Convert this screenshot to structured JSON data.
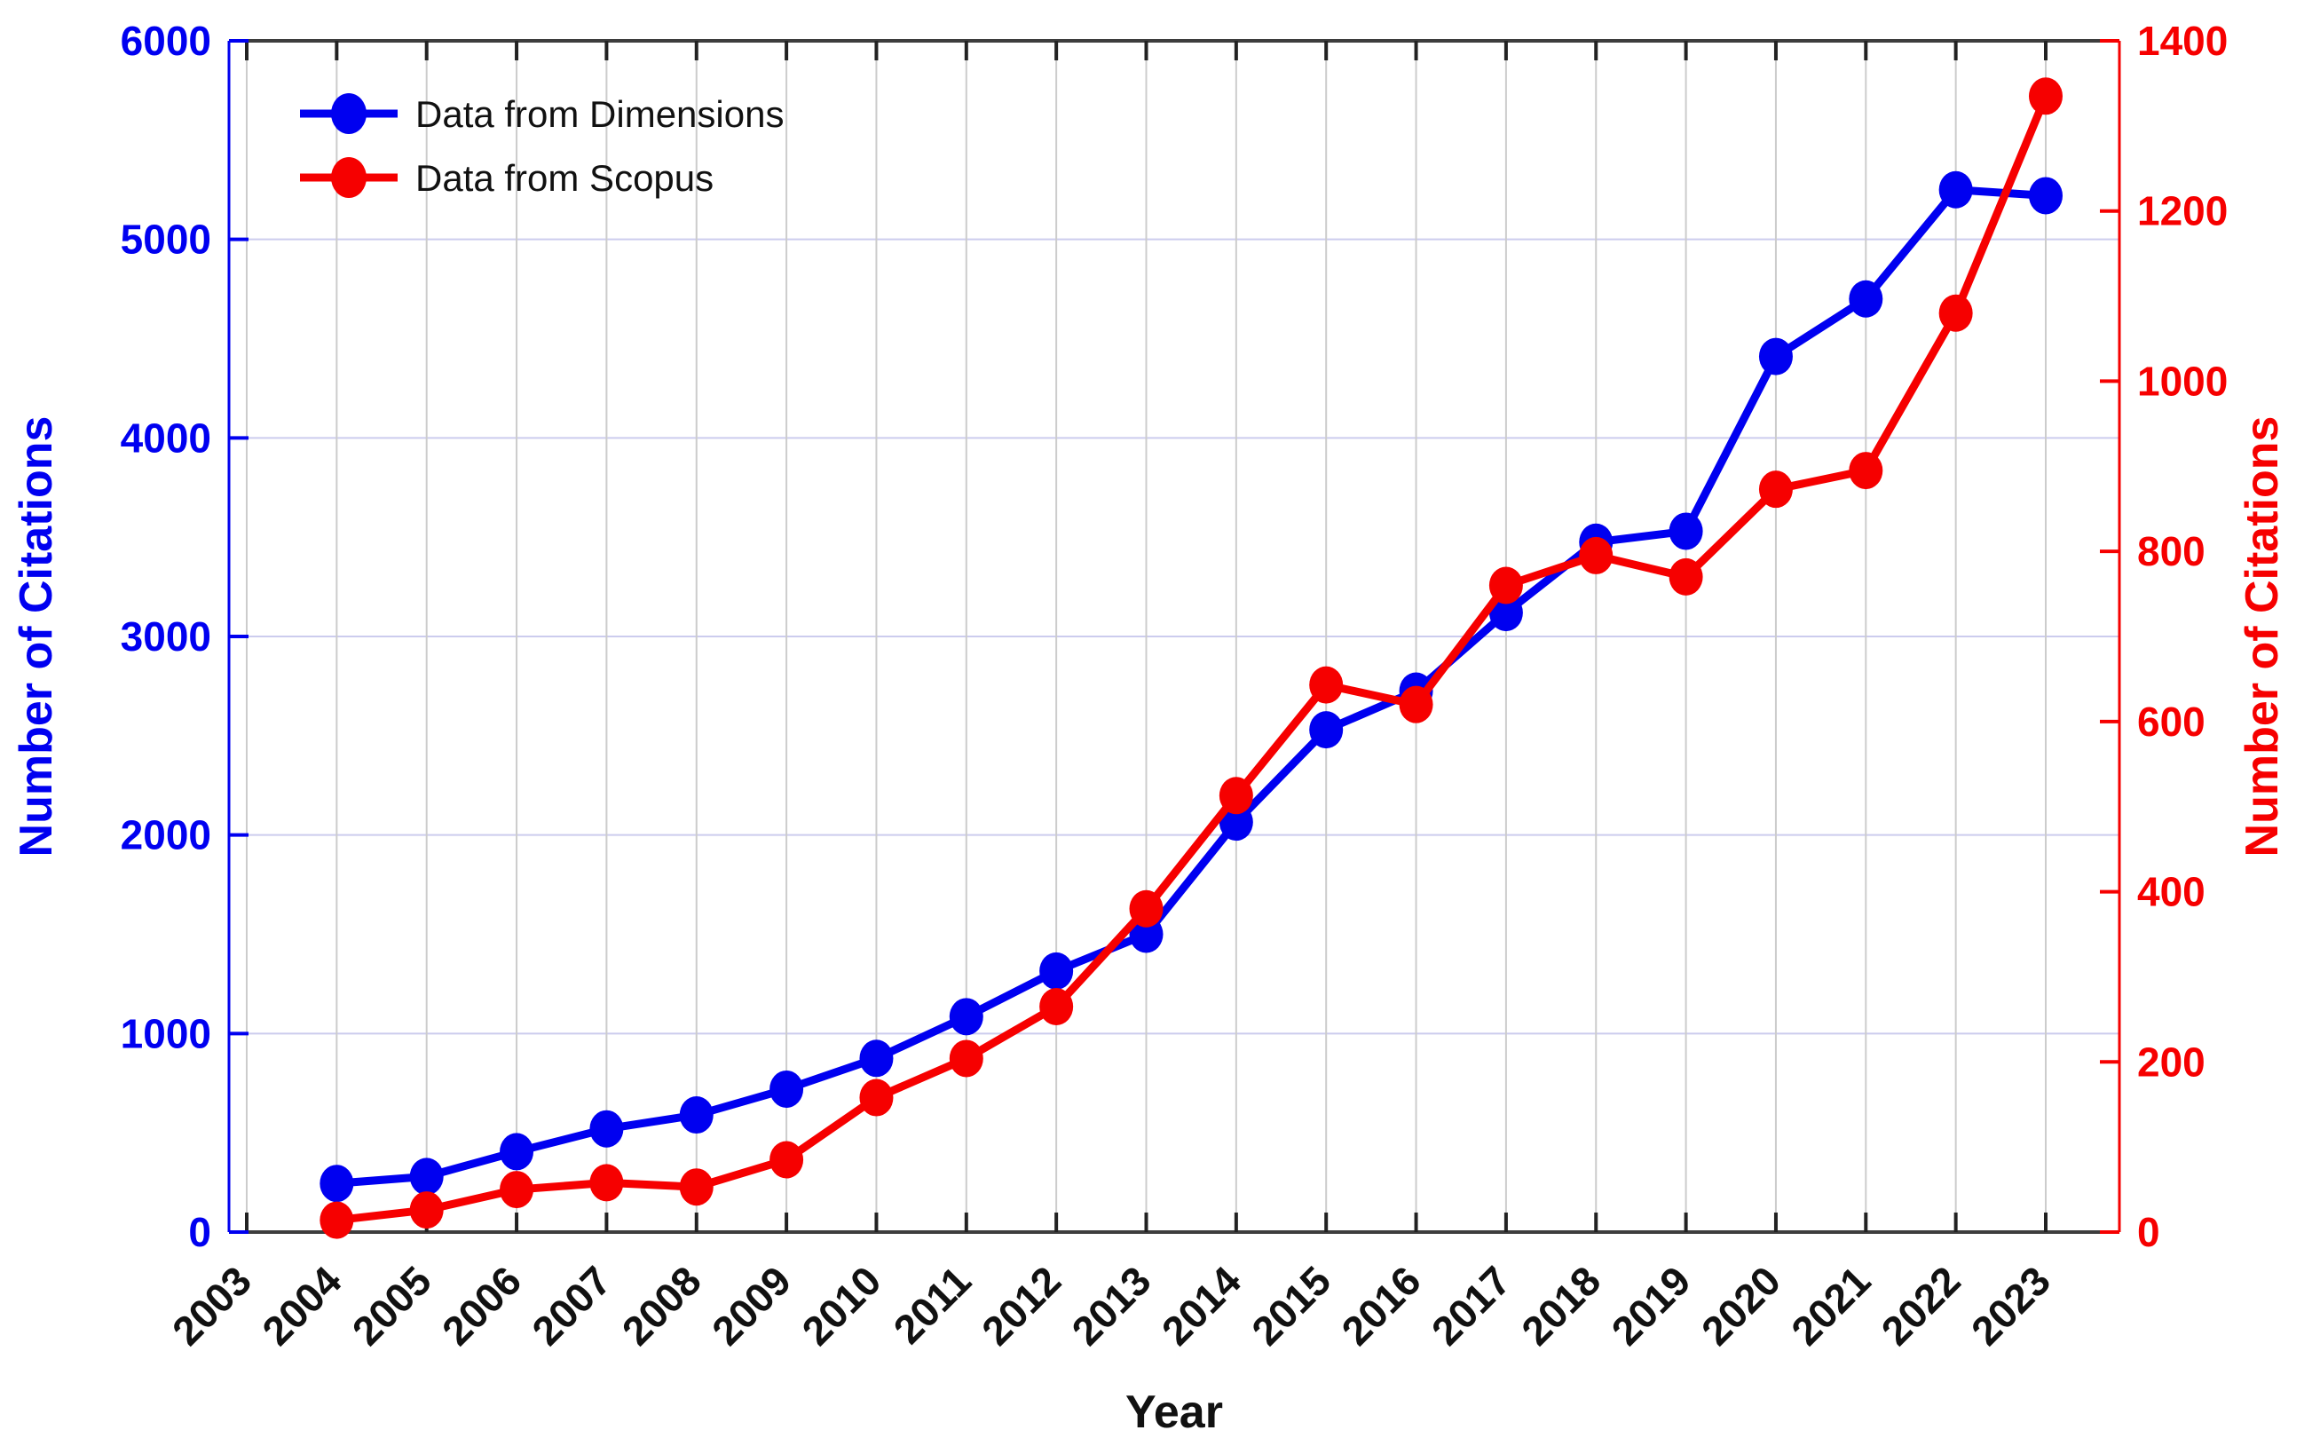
{
  "chart_data": {
    "type": "line",
    "title": "",
    "xlabel": "Year",
    "x_tick_labels": [
      "2003",
      "2004",
      "2005",
      "2006",
      "2007",
      "2008",
      "2009",
      "2010",
      "2011",
      "2012",
      "2013",
      "2014",
      "2015",
      "2016",
      "2017",
      "2018",
      "2019",
      "2020",
      "2021",
      "2022",
      "2023"
    ],
    "x_range": [
      2003,
      2023
    ],
    "grid": true,
    "colors": {
      "blue_series": "#0000f0",
      "red_series": "#f60000",
      "vertical_grid": "#cccccc",
      "horizontal_grid": "#ccccee",
      "frame": "#3d3d3d",
      "legend_text": "#111111"
    },
    "axes": {
      "left": {
        "label": "Number of Citations",
        "color": "#0000f0",
        "min": 0,
        "max": 6000,
        "ticks": [
          0,
          1000,
          2000,
          3000,
          4000,
          5000,
          6000
        ]
      },
      "right": {
        "label": "Number of Citations",
        "color": "#f60000",
        "min": 0,
        "max": 1400,
        "ticks": [
          0,
          200,
          400,
          600,
          800,
          1000,
          1200,
          1400
        ]
      },
      "x": {
        "label": "Year"
      }
    },
    "legend": {
      "position": "top-left",
      "entries": [
        "Data from Dimensions",
        "Data from Scopus"
      ]
    },
    "series": [
      {
        "name": "Data from Dimensions",
        "axis": "left",
        "color": "#0000f0",
        "years": [
          2004,
          2005,
          2006,
          2007,
          2008,
          2009,
          2010,
          2011,
          2012,
          2013,
          2014,
          2015,
          2016,
          2017,
          2018,
          2019,
          2020,
          2021,
          2022,
          2023
        ],
        "values": [
          245,
          280,
          405,
          520,
          590,
          720,
          875,
          1085,
          1315,
          1500,
          2065,
          2530,
          2725,
          3120,
          3475,
          3530,
          4410,
          4700,
          5250,
          5220
        ]
      },
      {
        "name": "Data from Scopus",
        "axis": "right",
        "color": "#f60000",
        "years": [
          2004,
          2005,
          2006,
          2007,
          2008,
          2009,
          2010,
          2011,
          2012,
          2013,
          2014,
          2015,
          2016,
          2017,
          2018,
          2019,
          2020,
          2021,
          2022,
          2023
        ],
        "values": [
          14,
          26,
          50,
          58,
          53,
          85,
          158,
          204,
          265,
          380,
          513,
          643,
          620,
          760,
          795,
          770,
          873,
          895,
          1080,
          1335
        ]
      }
    ]
  }
}
